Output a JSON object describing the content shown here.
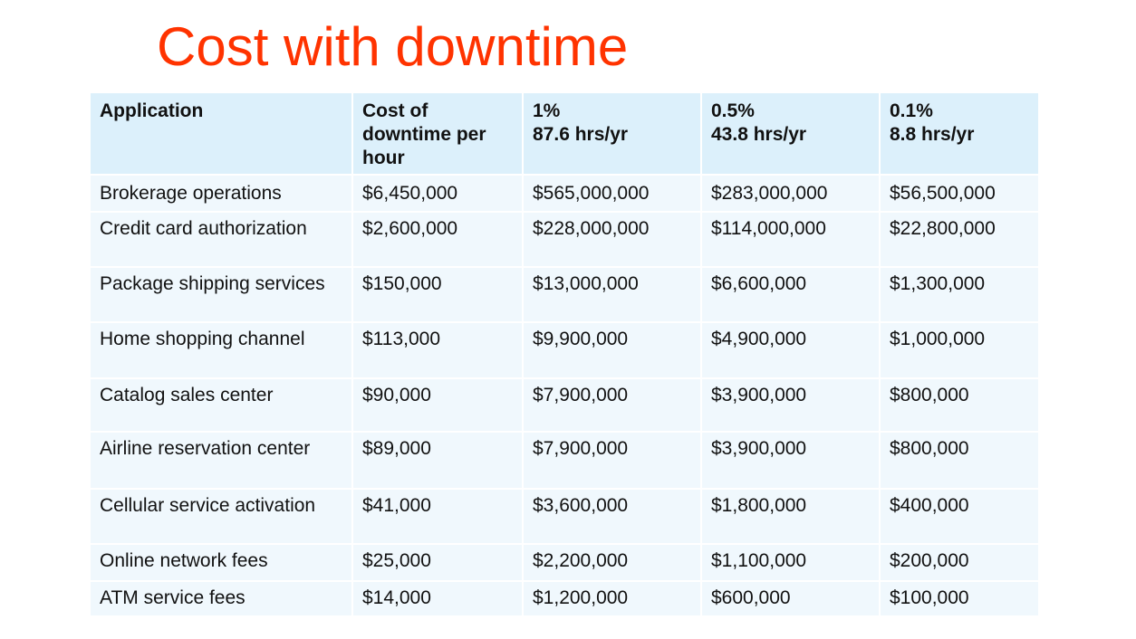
{
  "title": "Cost with downtime",
  "colors": {
    "title": "#ff3300",
    "header_bg": "#dcf0fb",
    "row_bg": "#f0f8fd"
  },
  "table": {
    "headers": [
      [
        "Application"
      ],
      [
        "Cost of",
        "downtime per",
        "hour"
      ],
      [
        "1%",
        "87.6 hrs/yr"
      ],
      [
        "0.5%",
        "43.8 hrs/yr"
      ],
      [
        "0.1%",
        "8.8 hrs/yr"
      ]
    ],
    "rows": [
      [
        "Brokerage operations",
        "$6,450,000",
        "$565,000,000",
        "$283,000,000",
        "$56,500,000"
      ],
      [
        "Credit card authorization",
        "$2,600,000",
        "$228,000,000",
        "$114,000,000",
        "$22,800,000"
      ],
      [
        "Package shipping services",
        "$150,000",
        "$13,000,000",
        "$6,600,000",
        "$1,300,000"
      ],
      [
        "Home shopping channel",
        "$113,000",
        "$9,900,000",
        "$4,900,000",
        "$1,000,000"
      ],
      [
        "Catalog sales center",
        "$90,000",
        "$7,900,000",
        "$3,900,000",
        "$800,000"
      ],
      [
        "Airline reservation center",
        "$89,000",
        "$7,900,000",
        "$3,900,000",
        "$800,000"
      ],
      [
        "Cellular service activation",
        "$41,000",
        "$3,600,000",
        "$1,800,000",
        "$400,000"
      ],
      [
        "Online network fees",
        "$25,000",
        "$2,200,000",
        "$1,100,000",
        "$200,000"
      ],
      [
        "ATM service fees",
        "$14,000",
        "$1,200,000",
        "$600,000",
        "$100,000"
      ]
    ]
  }
}
